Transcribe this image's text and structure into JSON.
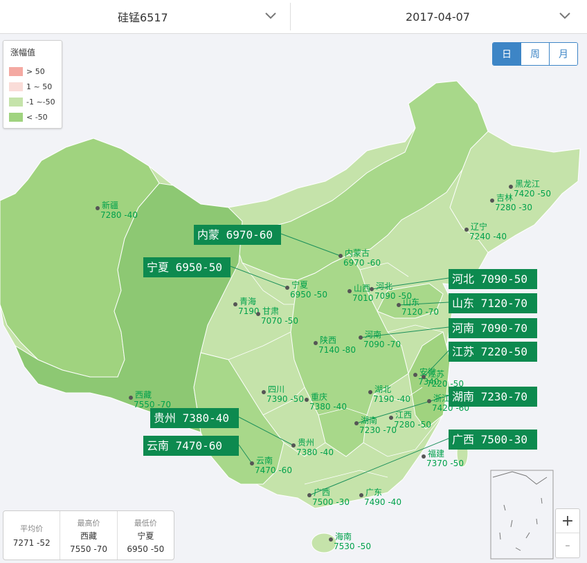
{
  "header": {
    "product": "硅锰6517",
    "date": "2017-04-07"
  },
  "legend": {
    "title": "涨幅值",
    "items": [
      {
        "label": "> 50",
        "color": "#f4a9a2"
      },
      {
        "label": "1 ~ 50",
        "color": "#fadcd8"
      },
      {
        "label": "-1 ~-50",
        "color": "#c5e3aa"
      },
      {
        "label": "< -50",
        "color": "#a0d37f"
      }
    ]
  },
  "periods": [
    "日",
    "周",
    "月"
  ],
  "colors": {
    "light": "#c5e3aa",
    "mid": "#a8d88a",
    "dark": "#8dc873",
    "label_box": "#0d8a4f",
    "label_text": "#00a14b"
  },
  "provinces": [
    {
      "name": "黑龙江",
      "line": "7420 -50"
    },
    {
      "name": "吉林",
      "line": "7280 -30"
    },
    {
      "name": "辽宁",
      "line": "7240 -40"
    },
    {
      "name": "新疆",
      "line": "7280 -40"
    },
    {
      "name": "内蒙古",
      "line": "6970 -60"
    },
    {
      "name": "宁夏",
      "line": "6950 -50"
    },
    {
      "name": "青海",
      "line": "7190"
    },
    {
      "name": "甘肃",
      "line": "7070 -50"
    },
    {
      "name": "山西",
      "line": "7010"
    },
    {
      "name": "河北",
      "line": "7090 -50"
    },
    {
      "name": "山东",
      "line": "7120 -70"
    },
    {
      "name": "河南",
      "line": "7090 -70"
    },
    {
      "name": "陕西",
      "line": "7140 -80"
    },
    {
      "name": "安徽",
      "line": "7340"
    },
    {
      "name": "江苏",
      "line": "7220 -50"
    },
    {
      "name": "西藏",
      "line": "7550 -70"
    },
    {
      "name": "四川",
      "line": "7390 -50"
    },
    {
      "name": "重庆",
      "line": "7380 -40"
    },
    {
      "name": "湖北",
      "line": "7190 -40"
    },
    {
      "name": "浙江",
      "line": "7420 -60"
    },
    {
      "name": "湖南",
      "line": "7230 -70"
    },
    {
      "name": "江西",
      "line": "7280 -50"
    },
    {
      "name": "贵州",
      "line": "7380 -40"
    },
    {
      "name": "云南",
      "line": "7470 -60"
    },
    {
      "name": "福建",
      "line": "7370 -50"
    },
    {
      "name": "广西",
      "line": "7500 -30"
    },
    {
      "name": "广东",
      "line": "7490 -40"
    },
    {
      "name": "海南",
      "line": "7530 -50"
    }
  ],
  "callouts": [
    "内蒙 6970-60",
    "宁夏 6950-50",
    "河北 7090-50",
    "山东 7120-70",
    "河南 7090-70",
    "江苏 7220-50",
    "湖南 7230-70",
    "贵州 7380-40",
    "云南 7470-60",
    "广西 7500-30"
  ],
  "stats": {
    "avg": {
      "label": "平均价",
      "value": "7271 -52"
    },
    "max": {
      "label": "最高价",
      "province": "西藏",
      "value": "7550 -70"
    },
    "min": {
      "label": "最低价",
      "province": "宁夏",
      "value": "6950 -50"
    }
  },
  "zoom": {
    "in": "+",
    "out": "-"
  }
}
